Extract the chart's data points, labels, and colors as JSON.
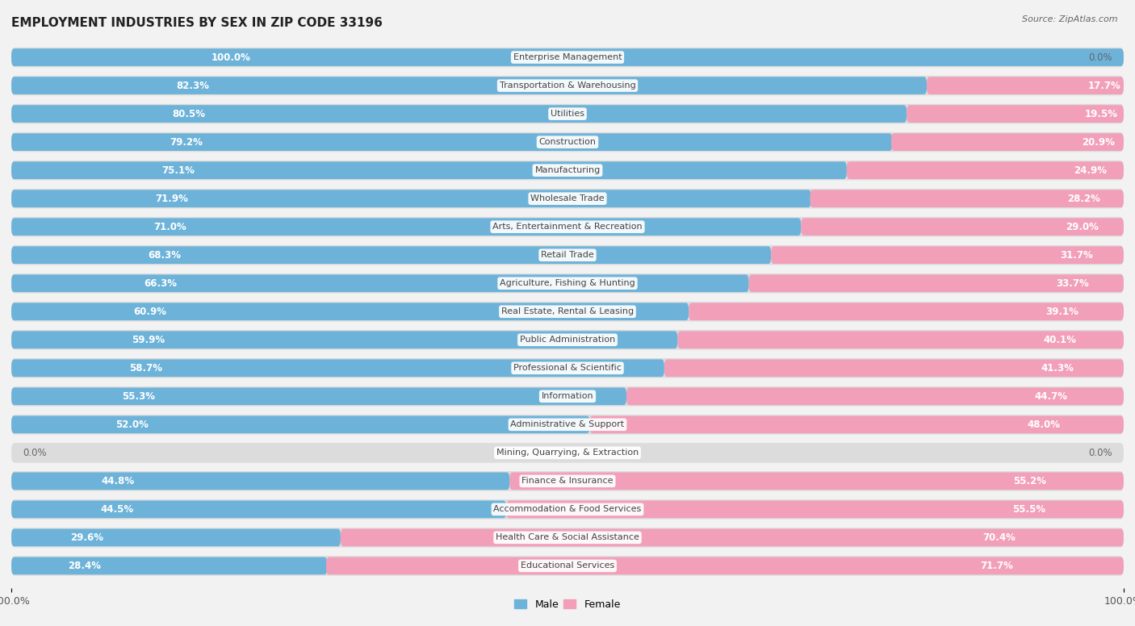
{
  "title": "EMPLOYMENT INDUSTRIES BY SEX IN ZIP CODE 33196",
  "source": "Source: ZipAtlas.com",
  "categories": [
    "Enterprise Management",
    "Transportation & Warehousing",
    "Utilities",
    "Construction",
    "Manufacturing",
    "Wholesale Trade",
    "Arts, Entertainment & Recreation",
    "Retail Trade",
    "Agriculture, Fishing & Hunting",
    "Real Estate, Rental & Leasing",
    "Public Administration",
    "Professional & Scientific",
    "Information",
    "Administrative & Support",
    "Mining, Quarrying, & Extraction",
    "Finance & Insurance",
    "Accommodation & Food Services",
    "Health Care & Social Assistance",
    "Educational Services"
  ],
  "male": [
    100.0,
    82.3,
    80.5,
    79.2,
    75.1,
    71.9,
    71.0,
    68.3,
    66.3,
    60.9,
    59.9,
    58.7,
    55.3,
    52.0,
    0.0,
    44.8,
    44.5,
    29.6,
    28.4
  ],
  "female": [
    0.0,
    17.7,
    19.5,
    20.9,
    24.9,
    28.2,
    29.0,
    31.7,
    33.7,
    39.1,
    40.1,
    41.3,
    44.7,
    48.0,
    0.0,
    55.2,
    55.5,
    70.4,
    71.7
  ],
  "male_color": "#6db3d9",
  "female_color": "#f29fba",
  "background_color": "#f2f2f2",
  "bar_bg_color": "#dcdcdc",
  "bar_height": 0.62,
  "label_fontsize": 8.5,
  "title_fontsize": 11,
  "category_fontsize": 8.0,
  "pct_label_fontsize": 8.5
}
